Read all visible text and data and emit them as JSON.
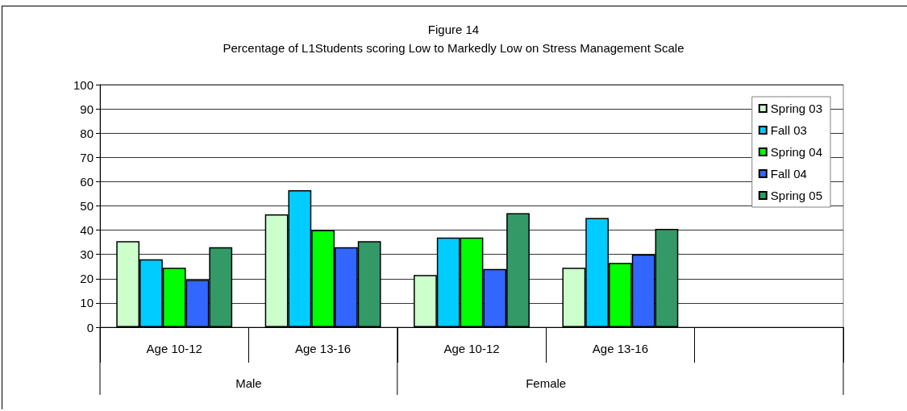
{
  "chart_data": {
    "type": "bar",
    "title": "Figure 14",
    "subtitle": "Percentage of L1Students scoring Low to Markedly Low on Stress Management Scale",
    "categories": [
      "Age 10-12",
      "Age 13-16",
      "Age 10-12",
      "Age 13-16",
      null
    ],
    "annotations": [
      "Male",
      "Female"
    ],
    "series": [
      {
        "name": "Spring 03",
        "color": "#ccffcc",
        "values": [
          35.5,
          46.5,
          21.5,
          24.5,
          null
        ]
      },
      {
        "name": "Fall 03",
        "color": "#00ccff",
        "values": [
          28,
          56.5,
          37,
          45,
          null
        ]
      },
      {
        "name": "Spring 04",
        "color": "#00ff00",
        "values": [
          24.5,
          40,
          37,
          26.5,
          null
        ]
      },
      {
        "name": "Fall 04",
        "color": "#3366ff",
        "values": [
          19.5,
          33,
          24,
          30,
          null
        ]
      },
      {
        "name": "Spring 05",
        "color": "#339966",
        "values": [
          33,
          35.5,
          47,
          40.5,
          null
        ]
      }
    ],
    "ylim": [
      0,
      100
    ],
    "yticks": [
      0,
      10,
      20,
      30,
      40,
      50,
      60,
      70,
      80,
      90,
      100
    ],
    "grid": true,
    "legend": "top right"
  }
}
